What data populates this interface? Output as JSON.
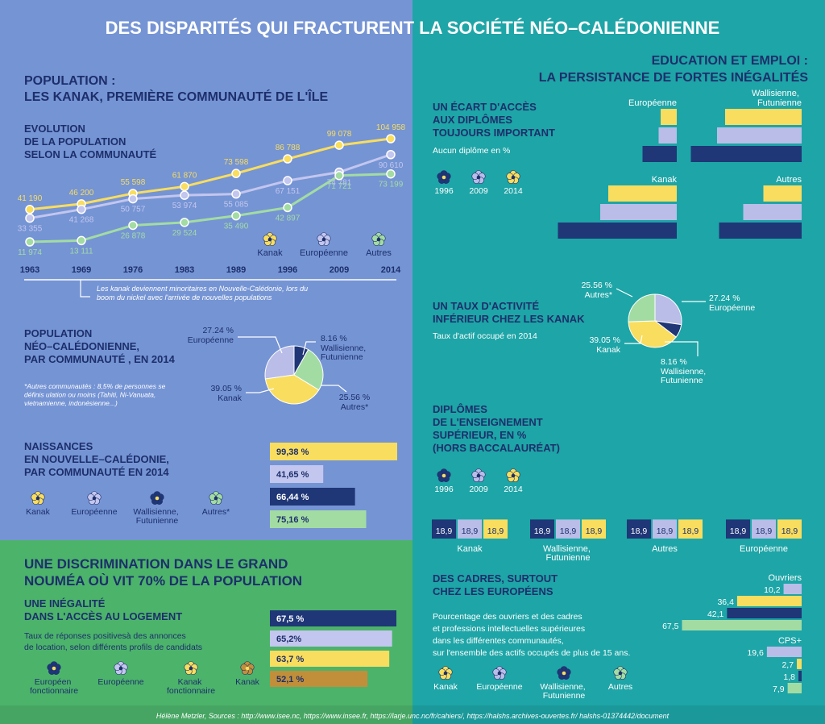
{
  "title": "DES DISPARITÉS QUI FRACTURENT LA SOCIÉTÉ NÉO–CALÉDONIENNE",
  "footer": "Hélène Metzler, Sources : http://www.isee.nc, https://www.insee.fr, https://larje.unc.nc/fr/cahiers/, https://halshs.archives-ouvertes.fr/ halshs-01374442/document",
  "sections": [
    [
      "POPULATION :",
      "LES KANAK, PREMIÈRE COMMUNAUTÉ DE L'ÎLE"
    ],
    [
      "UNE DISCRIMINATION DANS LE GRAND",
      "NOUMÉA OÙ VIT 70% DE LA POPULATION"
    ],
    [
      "EDUCATION ET EMPLOI :",
      "LA PERSISTANCE DE FORTES INÉGALITÉS"
    ]
  ],
  "chart_data": [
    {
      "type": "line",
      "title": [
        "EVOLUTION",
        "DE LA POPULATION",
        "SELON LA COMMUNAUTÉ"
      ],
      "categories": [
        "1963",
        "1969",
        "1976",
        "1983",
        "1989",
        "1996",
        "2009",
        "2014"
      ],
      "series": [
        {
          "name": "Kanak",
          "color": "#f9dd5e",
          "values": [
            41190,
            46200,
            55598,
            61870,
            73598,
            86788,
            99078,
            104958
          ],
          "value_labels": [
            "41 190",
            "46 200",
            "55 598",
            "61 870",
            "73 598",
            "86 788",
            "99 078",
            "104 958"
          ]
        },
        {
          "name": "Européenne",
          "color": "#c3c6ee",
          "values": [
            33355,
            41268,
            50757,
            53974,
            55085,
            67151,
            74781,
            90610
          ],
          "value_labels": [
            "33 355",
            "41 268",
            "50 757",
            "53 974",
            "55 085",
            "67 151",
            "74 781",
            "90 610"
          ]
        },
        {
          "name": "Autres",
          "color": "#a3dca3",
          "values": [
            11974,
            13111,
            26878,
            29524,
            35490,
            42897,
            71721,
            73199
          ],
          "value_labels": [
            "11 974",
            "13 111",
            "26 878",
            "29 524",
            "35 490",
            "42 897",
            "71 721",
            "73 199"
          ]
        }
      ],
      "annotation": [
        "Les kanak deviennent minoritaires en Nouvelle-Calédonie, lors du",
        "boom du nickel avec l'arrivée de nouvelles populations"
      ]
    },
    {
      "type": "pie",
      "title": [
        "POPULATION",
        "NÉO–CALÉDONIENNE,",
        "PAR COMMUNAUTÉ , EN 2014"
      ],
      "categories": [
        "Européenne",
        "Wallisienne, Futunienne",
        "Autres*",
        "Kanak"
      ],
      "values": [
        27.24,
        8.16,
        25.56,
        39.05
      ],
      "value_labels": [
        "27.24 %",
        "8.16 %",
        "25.56 %",
        "39.05 %"
      ],
      "colors": [
        "#b9bde8",
        "#1f3677",
        "#a3dca3",
        "#f9dd5e"
      ],
      "note": [
        "*Autres communautés : 8,5% de personnes se",
        "définis ulation ou moins (Tahiti, Ni-Vanuata,",
        "vietnamienne, indonésienne...)"
      ]
    },
    {
      "type": "barh",
      "title": [
        "NAISSANCES",
        "EN NOUVELLE–CALÉDONIE,",
        "PAR COMMUNAUTÉ EN 2014"
      ],
      "categories": [
        "Kanak",
        "Européenne",
        "Wallisienne, Futunienne",
        "Autres*"
      ],
      "values": [
        99.38,
        41.65,
        66.44,
        75.16
      ],
      "value_labels": [
        "99,38 %",
        "41,65 %",
        "66,44 %",
        "75,16 %"
      ],
      "colors": [
        "#f9dd5e",
        "#c3c6ee",
        "#1f3677",
        "#a3dca3"
      ]
    },
    {
      "type": "barh",
      "title": [
        "UNE INÉGALITÉ",
        "DANS L'ACCÈS AU LOGEMENT"
      ],
      "subtitle": [
        "Taux de réponses positivesà des annonces",
        "de location, selon différents profils de candidats"
      ],
      "categories": [
        "Européen fonctionnaire",
        "Européenne",
        "Kanak fonctionnaire",
        "Kanak"
      ],
      "values": [
        67.5,
        65.2,
        63.7,
        52.1
      ],
      "value_labels": [
        "67,5  %",
        "65,2%",
        "63,7 %",
        "52,1 %"
      ],
      "colors": [
        "#1f3677",
        "#c3c6ee",
        "#f9dd5e",
        "#c18f3a"
      ]
    },
    {
      "type": "grouped_barh",
      "title": [
        "UN ÉCART D'ACCÈS",
        "AUX DIPLÔMES",
        "TOUJOURS IMPORTANT"
      ],
      "subtitle": [
        "Aucun diplôme en %"
      ],
      "categories": [
        "Européenne",
        "Wallisienne, Futunienne",
        "Kanak",
        "Autres"
      ],
      "series": [
        {
          "name": "1996",
          "color": "#1f3677",
          "values": [
            17,
            55,
            59,
            41
          ]
        },
        {
          "name": "2009",
          "color": "#b9bde8",
          "values": [
            9,
            42,
            38,
            29
          ]
        },
        {
          "name": "2014",
          "color": "#f9dd5e",
          "values": [
            8,
            38,
            34,
            19
          ]
        }
      ]
    },
    {
      "type": "pie",
      "title": [
        "UN TAUX D'ACTIVITÉ",
        "INFÉRIEUR CHEZ LES KANAK"
      ],
      "subtitle": [
        "Taux d'actif occupé en 2014"
      ],
      "categories": [
        "Européenne",
        "Wallisienne, Futunienne",
        "Kanak",
        "Autres*"
      ],
      "values": [
        27.24,
        8.16,
        39.05,
        25.56
      ],
      "value_labels": [
        "27.24 %",
        "8.16 %",
        "39.05 %",
        "25.56 %"
      ],
      "colors": [
        "#b9bde8",
        "#1f3677",
        "#f9dd5e",
        "#a3dca3"
      ]
    },
    {
      "type": "grouped_bar",
      "title": [
        "DIPLÔMES",
        "DE L'ENSEIGNEMENT",
        "SUPÉRIEUR, EN %",
        "(HORS BACCALAURÉAT)"
      ],
      "categories": [
        "Kanak",
        "Wallisienne, Futunienne",
        "Autres",
        "Européenne"
      ],
      "series": [
        {
          "name": "1996",
          "color": "#1f3677",
          "values": [
            18.9,
            18.9,
            18.9,
            18.9
          ],
          "value_labels": [
            "18,9",
            "18,9",
            "18,9",
            "18,9"
          ]
        },
        {
          "name": "2009",
          "color": "#b9bde8",
          "values": [
            18.9,
            18.9,
            18.9,
            18.9
          ],
          "value_labels": [
            "18,9",
            "18,9",
            "18,9",
            "18,9"
          ]
        },
        {
          "name": "2014",
          "color": "#f9dd5e",
          "values": [
            18.9,
            18.9,
            18.9,
            18.9
          ],
          "value_labels": [
            "18,9",
            "18,9",
            "18,9",
            "18,9"
          ]
        }
      ]
    },
    {
      "type": "grouped_barh",
      "title": [
        "DES CADRES, SURTOUT",
        "CHEZ LES EUROPÉENS"
      ],
      "subtitle": [
        "Pourcentage des ouvriers et des cadres",
        "et professions intellectuelles supérieures",
        "dans les différentes communautés,",
        "sur l'ensemble des actifs occupés de plus de 15 ans."
      ],
      "categories": [
        "Ouvriers",
        "CPS+"
      ],
      "series": [
        {
          "name": "Kanak",
          "color": "#f9dd5e",
          "values": [
            36.4,
            2.7
          ],
          "value_labels": [
            "36,4",
            "2,7"
          ]
        },
        {
          "name": "Européenne",
          "color": "#b9bde8",
          "values": [
            10.2,
            19.6
          ],
          "value_labels": [
            "10,2",
            "19,6"
          ]
        },
        {
          "name": "Wallisienne, Futunienne",
          "color": "#1f3677",
          "values": [
            42.1,
            1.8
          ],
          "value_labels": [
            "42,1",
            "1,8"
          ]
        },
        {
          "name": "Autres",
          "color": "#a3dca3",
          "values": [
            67.5,
            7.9
          ],
          "value_labels": [
            "67,5",
            "7,9"
          ]
        }
      ]
    }
  ]
}
